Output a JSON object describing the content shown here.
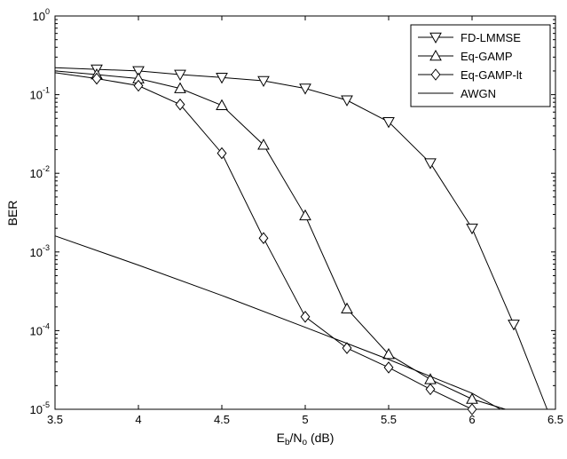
{
  "chart_data": {
    "type": "line",
    "title": "",
    "xlabel": {
      "main": "E",
      "sub1": "b",
      "mid": "/N",
      "sub2": "o",
      "tail": " (dB)"
    },
    "ylabel": "BER",
    "xlim": [
      3.5,
      6.5
    ],
    "ylim": [
      1e-05,
      1
    ],
    "yscale": "log",
    "grid": false,
    "legend_position": "top-right",
    "x_ticks": [
      {
        "value": 3.5,
        "label": "3.5"
      },
      {
        "value": 4,
        "label": "4"
      },
      {
        "value": 4.5,
        "label": "4.5"
      },
      {
        "value": 5,
        "label": "5"
      },
      {
        "value": 5.5,
        "label": "5.5"
      },
      {
        "value": 6,
        "label": "6"
      },
      {
        "value": 6.5,
        "label": "6.5"
      }
    ],
    "y_ticks": [
      {
        "value": 1,
        "base": "10",
        "exp": "0"
      },
      {
        "value": 0.1,
        "base": "10",
        "exp": "-1"
      },
      {
        "value": 0.01,
        "base": "10",
        "exp": "-2"
      },
      {
        "value": 0.001,
        "base": "10",
        "exp": "-3"
      },
      {
        "value": 0.0001,
        "base": "10",
        "exp": "-4"
      },
      {
        "value": 1e-05,
        "base": "10",
        "exp": "-5"
      }
    ],
    "series": [
      {
        "name": "FD-LMMSE",
        "marker": "triangle-down",
        "x": [
          3.5,
          3.75,
          4.0,
          4.25,
          4.5,
          4.75,
          5.0,
          5.25,
          5.5,
          5.75,
          6.0,
          6.25,
          6.45
        ],
        "y": [
          0.22,
          0.21,
          0.2,
          0.18,
          0.165,
          0.15,
          0.12,
          0.085,
          0.045,
          0.0135,
          0.002,
          0.00012,
          1e-05
        ],
        "marker_x": [
          3.75,
          4.0,
          4.25,
          4.5,
          4.75,
          5.0,
          5.25,
          5.5,
          5.75,
          6.0,
          6.25
        ]
      },
      {
        "name": "Eq-GAMP",
        "marker": "triangle-up",
        "x": [
          3.5,
          3.75,
          4.0,
          4.25,
          4.5,
          4.75,
          5.0,
          5.25,
          5.5,
          5.75,
          6.0,
          6.2
        ],
        "y": [
          0.2,
          0.18,
          0.16,
          0.12,
          0.073,
          0.023,
          0.0029,
          0.00019,
          5e-05,
          2.4e-05,
          1.35e-05,
          1e-05
        ],
        "marker_x": [
          3.75,
          4.0,
          4.25,
          4.5,
          4.75,
          5.0,
          5.25,
          5.5,
          5.75,
          6.0
        ]
      },
      {
        "name": "Eq-GAMP-lt",
        "marker": "diamond",
        "x": [
          3.5,
          3.75,
          4.0,
          4.25,
          4.5,
          4.75,
          5.0,
          5.25,
          5.5,
          5.75,
          6.0
        ],
        "y": [
          0.19,
          0.16,
          0.13,
          0.075,
          0.018,
          0.0015,
          0.00015,
          6e-05,
          3.4e-05,
          1.8e-05,
          1e-05
        ],
        "marker_x": [
          3.75,
          4.0,
          4.25,
          4.5,
          4.75,
          5.0,
          5.25,
          5.5,
          5.75,
          6.0
        ]
      },
      {
        "name": "AWGN",
        "marker": "none",
        "x": [
          3.5,
          4.0,
          4.5,
          5.0,
          5.5,
          6.0,
          6.17
        ],
        "y": [
          0.0016,
          0.00068,
          0.00028,
          0.00011,
          4.3e-05,
          1.6e-05,
          1e-05
        ],
        "marker_x": []
      }
    ]
  }
}
